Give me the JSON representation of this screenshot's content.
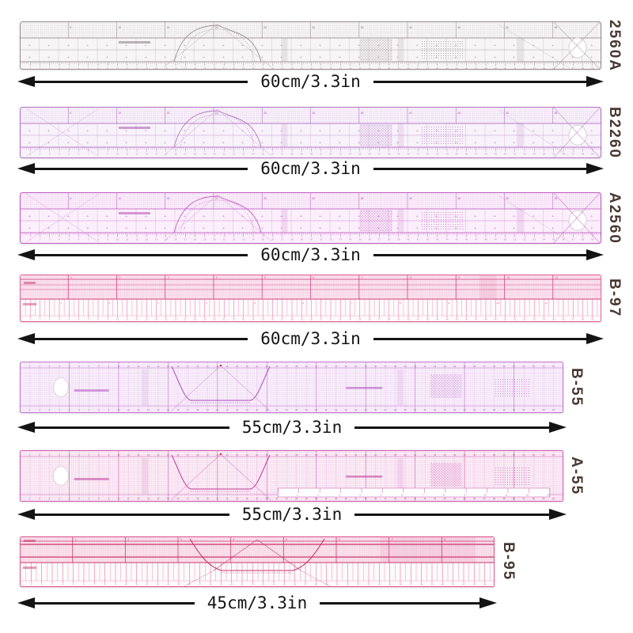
{
  "page": {
    "background": "#ffffff"
  },
  "arrow": {
    "color": "#141414"
  },
  "label_style": {
    "color": "#483831"
  },
  "rulers": [
    {
      "label": "2560A",
      "size_label": "60cm/3.3in",
      "length_cm": 60,
      "style": "patchwork",
      "hole": "right",
      "color": "#988b91",
      "accent": "#7c6e76",
      "tint": "#f7f5f6"
    },
    {
      "label": "B2260",
      "size_label": "60cm/3.3in",
      "length_cm": 60,
      "style": "patchwork",
      "hole": "right",
      "color": "#b273c2",
      "accent": "#9a46ad",
      "tint": "#f8f2fa"
    },
    {
      "label": "A2560",
      "size_label": "60cm/3.3in",
      "length_cm": 60,
      "style": "patchwork",
      "hole": "right",
      "color": "#c159c1",
      "accent": "#ad3cad",
      "tint": "#fbeffb"
    },
    {
      "label": "B-97",
      "size_label": "60cm/3.3in",
      "length_cm": 60,
      "style": "grading",
      "hole": "none",
      "color": "#e0558f",
      "accent": "#cc2e72",
      "tint": "#fbe9f2"
    },
    {
      "label": "B-55",
      "size_label": "55cm/3.3in",
      "length_cm": 55,
      "style": "grid",
      "hole": "left",
      "color": "#c272cf",
      "accent": "#ab48bd",
      "tint": "#f9f0fb"
    },
    {
      "label": "A-55",
      "size_label": "55cm/3.3in",
      "length_cm": 55,
      "style": "grid-strip",
      "hole": "left",
      "color": "#d058b0",
      "accent": "#bc3596",
      "tint": "#fbeff7"
    },
    {
      "label": "B-95",
      "size_label": "45cm/3.3in",
      "length_cm": 45,
      "style": "grading-curve",
      "hole": "none",
      "color": "#db4a86",
      "accent": "#c52b66",
      "tint": "#fbe9f1"
    }
  ]
}
